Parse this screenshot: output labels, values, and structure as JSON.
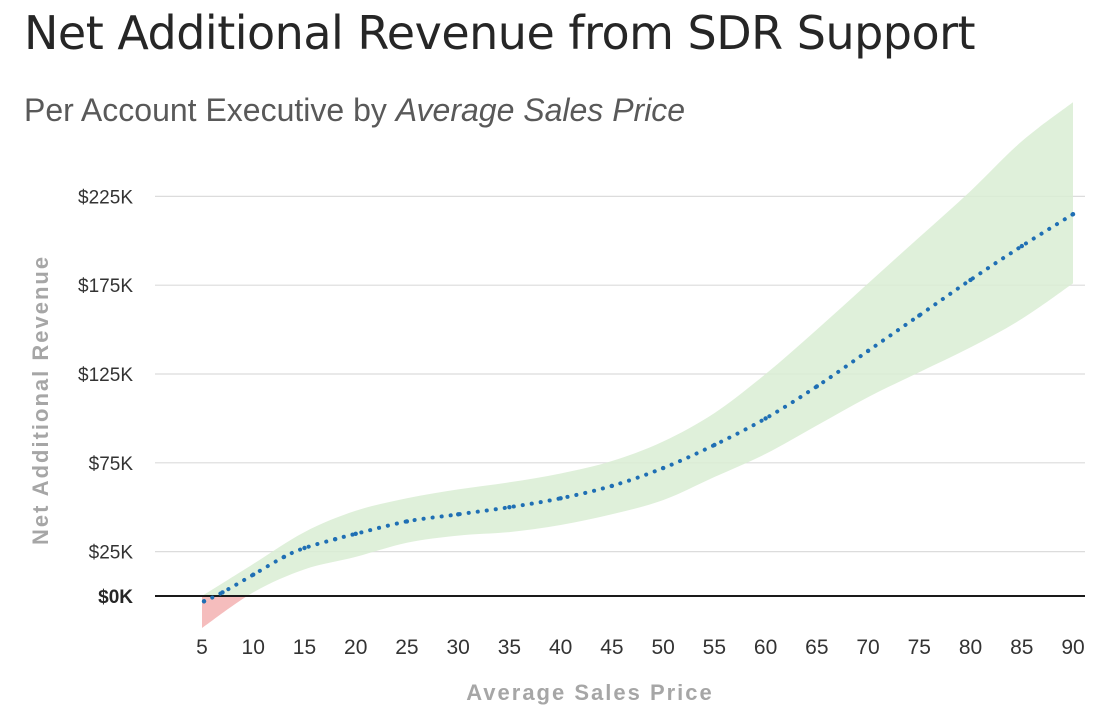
{
  "chart_data": {
    "type": "line",
    "title": "Net Additional Revenue from SDR Support",
    "subtitle": "Per Account Executive by",
    "subtitle_emphasis": "Average Sales Price",
    "xlabel": "Average Sales Price",
    "ylabel": "Net Additional Revenue",
    "x_ticks": [
      5,
      10,
      15,
      20,
      25,
      30,
      35,
      40,
      45,
      50,
      55,
      60,
      65,
      70,
      75,
      80,
      85,
      90
    ],
    "y_ticks": [
      {
        "value": 0,
        "label": "$0K",
        "bold": true
      },
      {
        "value": 25,
        "label": "$25K"
      },
      {
        "value": 75,
        "label": "$75K"
      },
      {
        "value": 125,
        "label": "$125K"
      },
      {
        "value": 175,
        "label": "$175K"
      },
      {
        "value": 225,
        "label": "$225K"
      }
    ],
    "xlim": [
      5,
      90
    ],
    "ylim": [
      -20,
      250
    ],
    "grid": true,
    "series": [
      {
        "style": "dotted",
        "color": "#1f6fb4",
        "x": [
          5.2,
          7,
          10,
          13,
          15,
          18,
          20,
          25,
          30,
          35,
          40,
          45,
          50,
          55,
          60,
          65,
          70,
          75,
          80,
          85,
          90
        ],
        "y": [
          -3,
          2,
          12,
          22,
          27,
          32,
          35,
          42,
          46,
          50,
          55,
          62,
          72,
          85,
          100,
          118,
          138,
          158,
          178,
          197,
          215
        ]
      }
    ],
    "confidence_band": {
      "color_positive": "#d9edd3",
      "color_negative": "#f4b6b6",
      "x": [
        5,
        10,
        15,
        20,
        25,
        30,
        35,
        40,
        45,
        50,
        55,
        60,
        65,
        70,
        75,
        80,
        85,
        90
      ],
      "upper": [
        0,
        18,
        36,
        48,
        55,
        60,
        64,
        69,
        76,
        87,
        103,
        125,
        150,
        176,
        202,
        228,
        256,
        278
      ],
      "lower": [
        -18,
        2,
        15,
        22,
        30,
        34,
        36,
        40,
        46,
        54,
        67,
        80,
        96,
        112,
        126,
        140,
        156,
        176
      ]
    }
  }
}
